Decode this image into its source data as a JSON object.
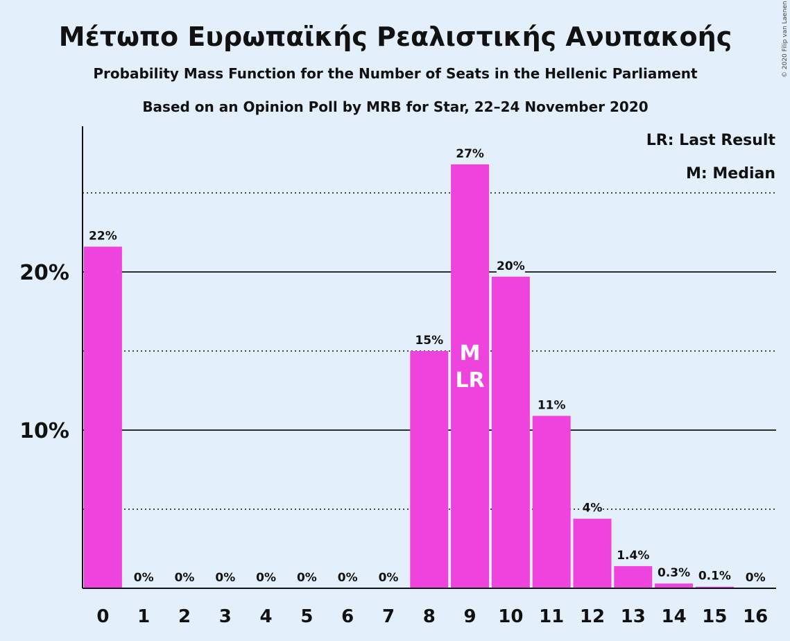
{
  "chart_data": {
    "type": "bar",
    "title": "Μέτωπο Ευρωπαϊκής Ρεαλιστικής Ανυπακοής",
    "subtitle": "Probability Mass Function for the Number of Seats in the Hellenic Parliament",
    "subtitle2": "Based on an Opinion Poll by MRB for Star, 22–24 November 2020",
    "copyright": "© 2020 Filip van Laenen",
    "legend": [
      "LR: Last Result",
      "M: Median"
    ],
    "legend_placement": "top-right",
    "categories": [
      "0",
      "1",
      "2",
      "3",
      "4",
      "5",
      "6",
      "7",
      "8",
      "9",
      "10",
      "11",
      "12",
      "13",
      "14",
      "15",
      "16"
    ],
    "values": [
      21.6,
      0,
      0,
      0,
      0,
      0,
      0,
      0,
      15.0,
      26.8,
      19.7,
      10.9,
      4.4,
      1.4,
      0.3,
      0.1,
      0
    ],
    "data_labels": [
      "22%",
      "0%",
      "0%",
      "0%",
      "0%",
      "0%",
      "0%",
      "0%",
      "15%",
      "27%",
      "20%",
      "11%",
      "4%",
      "1.4%",
      "0.3%",
      "0.1%",
      "0%"
    ],
    "yticks": [
      10,
      20
    ],
    "ytick_labels": [
      "10%",
      "20%"
    ],
    "minor_gridlines": [
      5,
      15,
      25
    ],
    "ylim": [
      0,
      29
    ],
    "median_index": 9,
    "last_result_index": 9,
    "median_marker": "M",
    "last_result_marker": "LR",
    "bar_color": "#ee44dd",
    "background_color": "#e3f0fc",
    "xlabel": "",
    "ylabel": ""
  }
}
